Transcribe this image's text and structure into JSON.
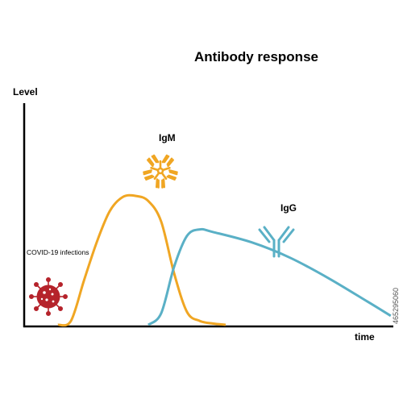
{
  "chart_data": {
    "type": "line",
    "title": "Antibody response",
    "ylabel": "Level",
    "xlabel": "time",
    "annotation": "COVID-19 infections",
    "series": [
      {
        "name": "IgM",
        "color": "#f0a623",
        "points": [
          [
            0.0,
            0
          ],
          [
            0.1,
            0.03
          ],
          [
            0.2,
            0.34
          ],
          [
            0.3,
            0.64
          ],
          [
            0.4,
            0.88
          ],
          [
            0.5,
            0.99
          ],
          [
            0.6,
            1.0
          ],
          [
            0.7,
            0.96
          ],
          [
            0.8,
            0.8
          ],
          [
            0.9,
            0.4
          ],
          [
            1.0,
            0.1
          ],
          [
            1.1,
            0.03
          ],
          [
            1.2,
            0.01
          ],
          [
            1.3,
            0.0
          ]
        ]
      },
      {
        "name": "IgG",
        "color": "#5ab0c6",
        "points": [
          [
            0.7,
            0
          ],
          [
            0.8,
            0.09
          ],
          [
            0.9,
            0.45
          ],
          [
            1.0,
            0.69
          ],
          [
            1.1,
            0.74
          ],
          [
            1.2,
            0.72
          ],
          [
            1.5,
            0.64
          ],
          [
            1.8,
            0.52
          ],
          [
            2.1,
            0.36
          ],
          [
            2.4,
            0.18
          ],
          [
            2.58,
            0.07
          ]
        ]
      }
    ],
    "grid": false
  },
  "labels": {
    "title": "Antibody response",
    "ylabel": "Level",
    "xlabel": "time",
    "igm": "IgM",
    "igg": "IgG",
    "infection": "COVID-19 infections",
    "stock_id": "465295060"
  },
  "colors": {
    "igm": "#f0a623",
    "igg": "#5ab0c6",
    "virus": "#b5232b",
    "axis": "#000000"
  },
  "icons": {
    "virus": "coronavirus-icon",
    "igm": "igm-pentamer-icon",
    "igg": "igg-antibody-icon"
  }
}
